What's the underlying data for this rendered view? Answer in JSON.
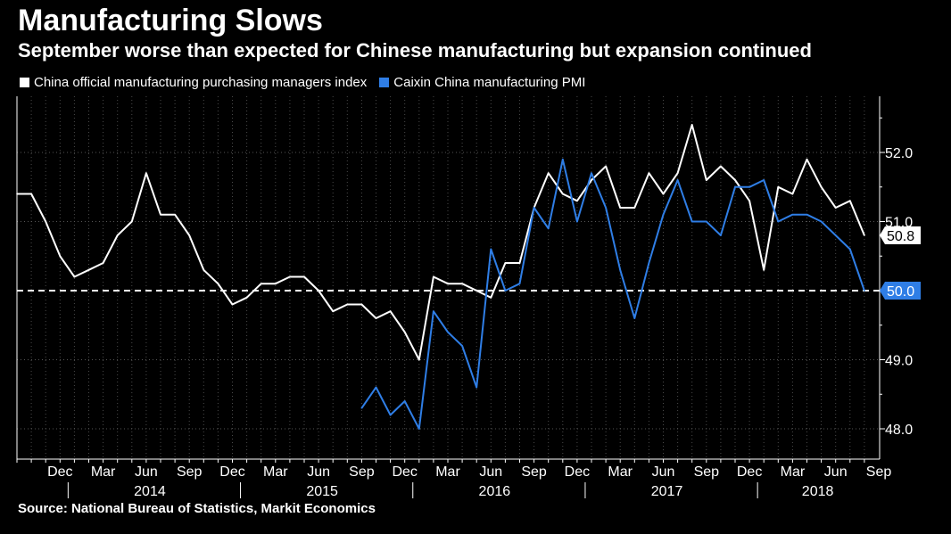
{
  "title": "Manufacturing Slows",
  "subtitle": "September worse than expected for Chinese manufacturing but expansion continued",
  "source": "Source: National Bureau of Statistics, Markit Economics",
  "colors": {
    "background": "#000000",
    "official": "#ffffff",
    "caixin": "#2f7ee6",
    "grid": "#555555"
  },
  "chart_data": {
    "type": "line",
    "x_start": "2013-09",
    "ylim": [
      47.6,
      52.9
    ],
    "yticks": [
      48.0,
      49.0,
      50.0,
      51.0,
      52.0
    ],
    "ytick_labels": [
      "48.0",
      "49.0",
      "50.0",
      "51.0",
      "52.0"
    ],
    "reference_line": {
      "value": 50.0,
      "label": "50.0",
      "style": "dashed"
    },
    "month_ticks": [
      {
        "label": "Dec",
        "index": 3
      },
      {
        "label": "Mar",
        "index": 6
      },
      {
        "label": "Jun",
        "index": 9
      },
      {
        "label": "Sep",
        "index": 12
      },
      {
        "label": "Dec",
        "index": 15
      },
      {
        "label": "Mar",
        "index": 18
      },
      {
        "label": "Jun",
        "index": 21
      },
      {
        "label": "Sep",
        "index": 24
      },
      {
        "label": "Dec",
        "index": 27
      },
      {
        "label": "Mar",
        "index": 30
      },
      {
        "label": "Jun",
        "index": 33
      },
      {
        "label": "Sep",
        "index": 36
      },
      {
        "label": "Dec",
        "index": 39
      },
      {
        "label": "Mar",
        "index": 42
      },
      {
        "label": "Jun",
        "index": 45
      },
      {
        "label": "Sep",
        "index": 48
      },
      {
        "label": "Dec",
        "index": 51
      },
      {
        "label": "Mar",
        "index": 54
      },
      {
        "label": "Jun",
        "index": 57
      },
      {
        "label": "Sep",
        "index": 60
      }
    ],
    "year_labels": [
      {
        "label": "2014",
        "center": 9.5
      },
      {
        "label": "2015",
        "center": 21.5
      },
      {
        "label": "2016",
        "center": 33.5
      },
      {
        "label": "2017",
        "center": 45.5
      },
      {
        "label": "2018",
        "center": 56.0
      }
    ],
    "year_separators": [
      4,
      16,
      28,
      40,
      52
    ],
    "series": [
      {
        "name": "China official manufacturing purchasing managers index",
        "color": "#ffffff",
        "start_index": 0,
        "values": [
          51.4,
          51.4,
          51.0,
          50.5,
          50.2,
          50.3,
          50.4,
          50.8,
          51.0,
          51.7,
          51.1,
          51.1,
          50.8,
          50.3,
          50.1,
          49.8,
          49.9,
          50.1,
          50.1,
          50.2,
          50.2,
          50.0,
          49.7,
          49.8,
          49.8,
          49.6,
          49.7,
          49.4,
          49.0,
          50.2,
          50.1,
          50.1,
          50.0,
          49.9,
          50.4,
          50.4,
          51.2,
          51.7,
          51.4,
          51.3,
          51.6,
          51.8,
          51.2,
          51.2,
          51.7,
          51.4,
          51.7,
          52.4,
          51.6,
          51.8,
          51.6,
          51.3,
          50.3,
          51.5,
          51.4,
          51.9,
          51.5,
          51.2,
          51.3,
          50.8
        ],
        "last_label": "50.8"
      },
      {
        "name": "Caixin China manufacturing PMI",
        "color": "#2f7ee6",
        "start_index": 24,
        "values": [
          48.3,
          48.6,
          48.2,
          48.4,
          48.0,
          49.7,
          49.4,
          49.2,
          48.6,
          50.6,
          50.0,
          50.1,
          51.2,
          50.9,
          51.9,
          51.0,
          51.7,
          51.2,
          50.3,
          49.6,
          50.4,
          51.1,
          51.6,
          51.0,
          51.0,
          50.8,
          51.5,
          51.5,
          51.6,
          51.0,
          51.1,
          51.1,
          51.0,
          50.8,
          50.6,
          50.0
        ],
        "last_label": "50.0"
      }
    ]
  }
}
